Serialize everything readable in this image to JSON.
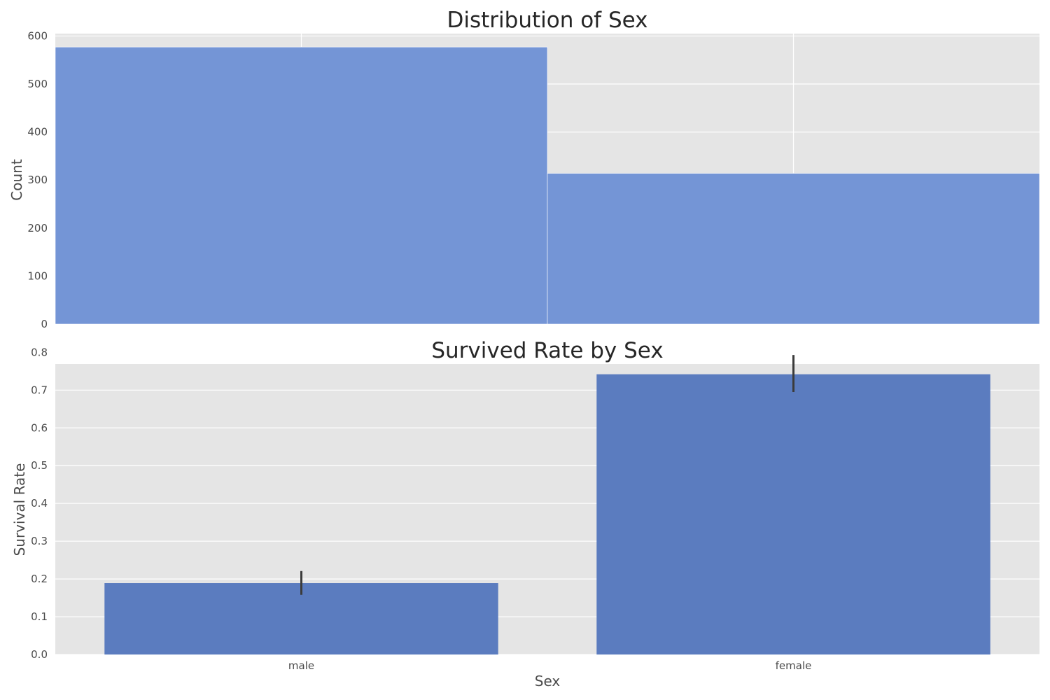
{
  "colors": {
    "plot_background": "#e5e5e5",
    "grid": "#ffffff",
    "hist_bar": "#6f92d5",
    "bar": "#5b7cbf",
    "error_bar": "#3b3b3b"
  },
  "chart_data": [
    {
      "type": "bar",
      "chart_style": "histogram",
      "title": "Distribution of Sex",
      "xlabel": "",
      "ylabel": "Count",
      "categories": [
        "male",
        "female"
      ],
      "values": [
        577,
        314
      ],
      "ylim": [
        0,
        605
      ],
      "yticks": [
        0,
        100,
        200,
        300,
        400,
        500,
        600
      ],
      "grid": true,
      "legend": "none"
    },
    {
      "type": "bar",
      "title": "Survived Rate by Sex",
      "xlabel": "Sex",
      "ylabel": "Survival Rate",
      "categories": [
        "male",
        "female"
      ],
      "values": [
        0.189,
        0.742
      ],
      "error_low": [
        0.158,
        0.695
      ],
      "error_high": [
        0.221,
        0.793
      ],
      "ylim": [
        0,
        0.8
      ],
      "yticks": [
        "0.0",
        "0.1",
        "0.2",
        "0.3",
        "0.4",
        "0.5",
        "0.6",
        "0.7",
        "0.8"
      ],
      "grid": true,
      "legend": "none"
    }
  ]
}
